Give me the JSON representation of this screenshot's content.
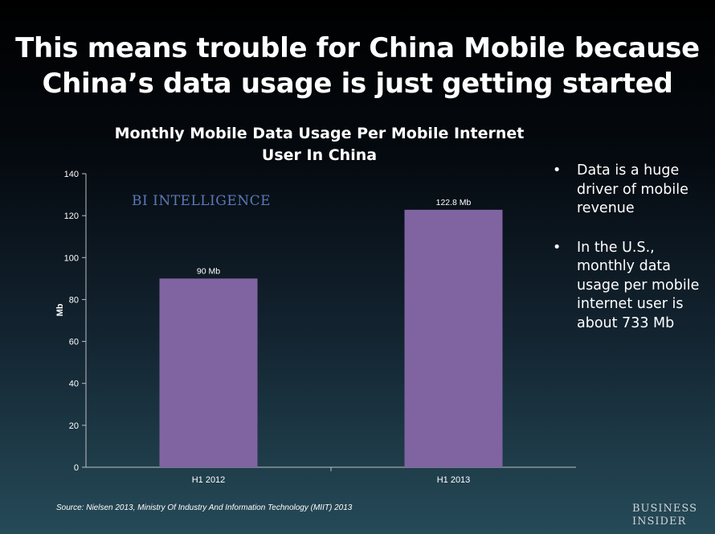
{
  "slide": {
    "title_line1": "This means trouble for China Mobile because",
    "title_line2": "China’s data usage is just getting started",
    "watermark": "BI INTELLIGENCE",
    "bullets": [
      "Data is a huge driver of mobile revenue",
      "In  the U.S., monthly data usage per mobile internet user is about 733 Mb"
    ],
    "bullet_symbol": "•",
    "source": "Source: Nielsen 2013, Ministry Of Industry And Information Technology (MIIT) 2013",
    "brand_line1": "BUSINESS",
    "brand_line2": "INSIDER"
  },
  "chart_data": {
    "type": "bar",
    "title_line1": "Monthly Mobile Data Usage Per Mobile Internet",
    "title_line2": "User In China",
    "categories": [
      "H1 2012",
      "H1 2013"
    ],
    "values": [
      90,
      122.8
    ],
    "data_labels": [
      "90 Mb",
      "122.8 Mb"
    ],
    "xlabel": "",
    "ylabel": "Mb",
    "ylim": [
      0,
      140
    ],
    "yticks": [
      0,
      20,
      40,
      60,
      80,
      100,
      120,
      140
    ],
    "bar_color": "#8064a2",
    "axis_color": "#bfbfbf",
    "grid": false,
    "legend": "none"
  }
}
